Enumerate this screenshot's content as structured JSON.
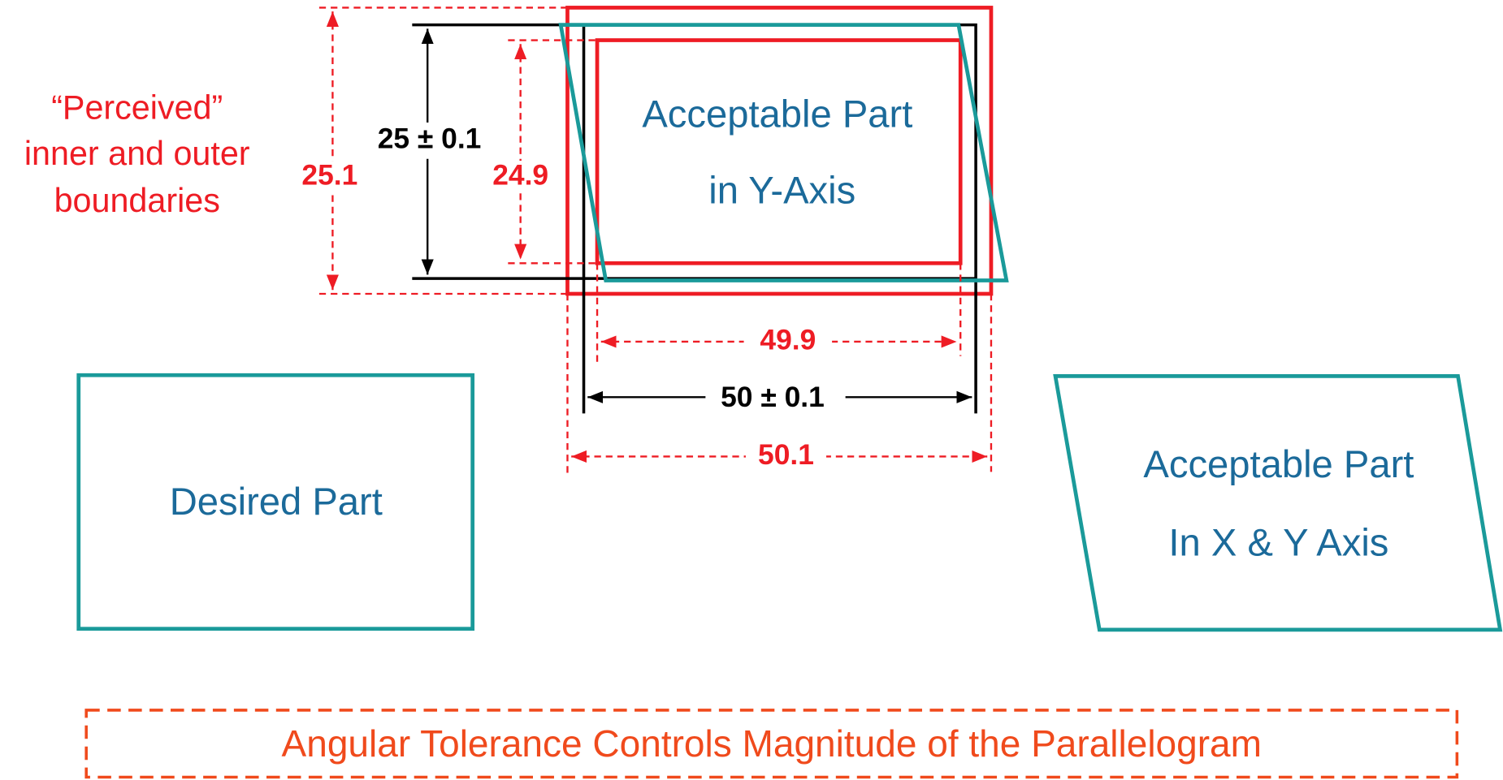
{
  "note": [
    "“Perceived”",
    "inner and outer",
    "boundaries"
  ],
  "dimensions": {
    "outer_height": "25.1",
    "nominal_height": "25 ± 0.1",
    "inner_height": "24.9",
    "inner_width": "49.9",
    "nominal_width": "50 ± 0.1",
    "outer_width": "50.1"
  },
  "parts": {
    "y_axis": [
      "Acceptable Part",
      "in Y-Axis"
    ],
    "desired": "Desired Part",
    "xy_axis": [
      "Acceptable Part",
      "In X & Y Axis"
    ]
  },
  "footer": "Angular Tolerance Controls Magnitude of the Parallelogram"
}
